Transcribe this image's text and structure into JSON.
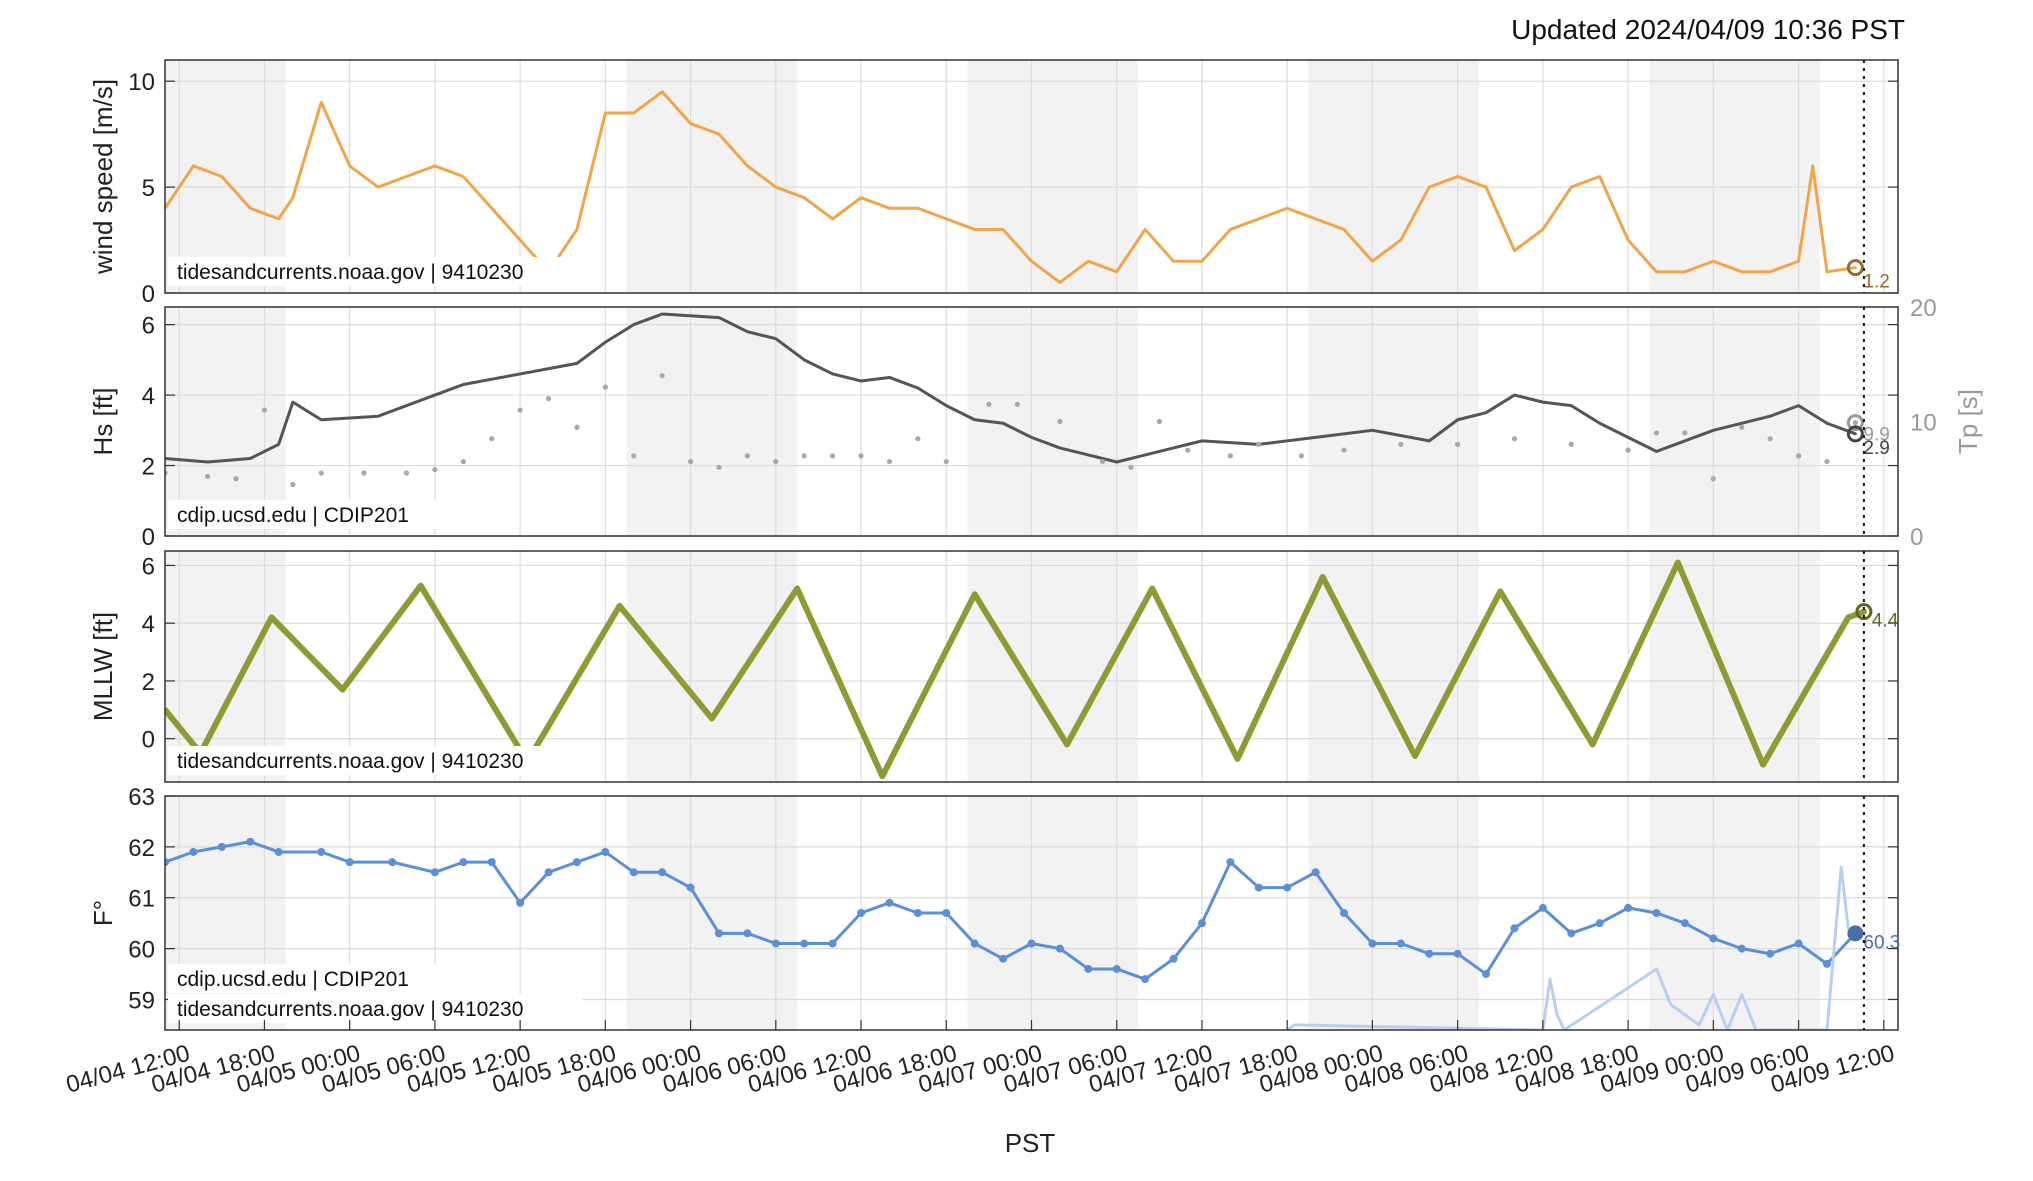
{
  "header": {
    "updated": "Updated 2024/04/09 10:36 PST"
  },
  "xaxis": {
    "label": "PST",
    "range": [
      "2024-04-04T11:00",
      "2024-04-09T13:00"
    ],
    "ticks": [
      "04/04 12:00",
      "04/04 18:00",
      "04/05 00:00",
      "04/05 06:00",
      "04/05 12:00",
      "04/05 18:00",
      "04/06 00:00",
      "04/06 06:00",
      "04/06 12:00",
      "04/06 18:00",
      "04/07 00:00",
      "04/07 06:00",
      "04/07 12:00",
      "04/07 18:00",
      "04/08 00:00",
      "04/08 06:00",
      "04/08 12:00",
      "04/08 18:00",
      "04/09 00:00",
      "04/09 06:00",
      "04/09 12:00"
    ],
    "now_marker": "2024-04-09T10:36",
    "night_shading": [
      [
        "04/04 11:00",
        "04/04 19:30"
      ],
      [
        "04/05 19:30",
        "04/06 07:30"
      ],
      [
        "04/06 19:30",
        "04/07 07:30"
      ],
      [
        "04/07 19:30",
        "04/08 07:30"
      ],
      [
        "04/08 19:30",
        "04/09 07:30"
      ]
    ]
  },
  "chart_data": [
    {
      "type": "line",
      "panel": "wind",
      "ylabel": "wind speed [m/s]",
      "ylim": [
        0,
        11
      ],
      "yticks": [
        0,
        5,
        10
      ],
      "source": "tidesandcurrents.noaa.gov | 9410230",
      "color": "#f0a54a",
      "last_value_label": "1.2",
      "series": [
        {
          "x": [
            "04/04 11:00",
            "04/04 13:00",
            "04/04 15:00",
            "04/04 17:00",
            "04/04 19:00",
            "04/04 20:00",
            "04/04 22:00",
            "04/05 00:00",
            "04/05 02:00",
            "04/05 04:00",
            "04/05 06:00",
            "04/05 08:00",
            "04/05 10:00",
            "04/05 12:00",
            "04/05 14:00",
            "04/05 16:00",
            "04/05 18:00",
            "04/05 20:00",
            "04/05 22:00",
            "04/06 00:00",
            "04/06 02:00",
            "04/06 04:00",
            "04/06 06:00",
            "04/06 08:00",
            "04/06 10:00",
            "04/06 12:00",
            "04/06 14:00",
            "04/06 16:00",
            "04/06 18:00",
            "04/06 20:00",
            "04/06 22:00",
            "04/07 00:00",
            "04/07 02:00",
            "04/07 04:00",
            "04/07 06:00",
            "04/07 08:00",
            "04/07 10:00",
            "04/07 12:00",
            "04/07 14:00",
            "04/07 16:00",
            "04/07 18:00",
            "04/07 20:00",
            "04/07 22:00",
            "04/08 00:00",
            "04/08 02:00",
            "04/08 04:00",
            "04/08 06:00",
            "04/08 08:00",
            "04/08 10:00",
            "04/08 12:00",
            "04/08 14:00",
            "04/08 16:00",
            "04/08 18:00",
            "04/08 20:00",
            "04/08 22:00",
            "04/09 00:00",
            "04/09 02:00",
            "04/09 04:00",
            "04/09 06:00",
            "04/09 07:00",
            "04/09 08:00",
            "04/09 10:00"
          ],
          "y": [
            4.0,
            6.0,
            5.5,
            4.0,
            3.5,
            4.5,
            9.0,
            6.0,
            5.0,
            5.5,
            6.0,
            5.5,
            4.0,
            2.5,
            1.0,
            3.0,
            8.5,
            8.5,
            9.5,
            8.0,
            7.5,
            6.0,
            5.0,
            4.5,
            3.5,
            4.5,
            4.0,
            4.0,
            3.5,
            3.0,
            3.0,
            1.5,
            0.5,
            1.5,
            1.0,
            3.0,
            1.5,
            1.5,
            3.0,
            3.5,
            4.0,
            3.5,
            3.0,
            1.5,
            2.5,
            5.0,
            5.5,
            5.0,
            2.0,
            3.0,
            5.0,
            5.5,
            2.5,
            1.0,
            1.0,
            1.5,
            1.0,
            1.0,
            1.5,
            6.0,
            1.0,
            1.2
          ]
        }
      ]
    },
    {
      "type": "line",
      "panel": "waves",
      "ylabel": "Hs [ft]",
      "y2label": "Tp [s]",
      "ylim": [
        0,
        6.5
      ],
      "y2lim": [
        0,
        20
      ],
      "yticks": [
        0,
        2,
        4,
        6
      ],
      "y2ticks": [
        0,
        10,
        20
      ],
      "source": "cdip.ucsd.edu | CDIP201",
      "last_value_labels": [
        "9.9",
        "2.9"
      ],
      "series": [
        {
          "name": "Hs",
          "color": "#555555",
          "x": [
            "04/04 11:00",
            "04/04 14:00",
            "04/04 17:00",
            "04/04 19:00",
            "04/04 20:00",
            "04/04 22:00",
            "04/05 02:00",
            "04/05 06:00",
            "04/05 08:00",
            "04/05 12:00",
            "04/05 16:00",
            "04/05 18:00",
            "04/05 20:00",
            "04/05 22:00",
            "04/06 02:00",
            "04/06 04:00",
            "04/06 06:00",
            "04/06 08:00",
            "04/06 10:00",
            "04/06 12:00",
            "04/06 14:00",
            "04/06 16:00",
            "04/06 18:00",
            "04/06 20:00",
            "04/06 22:00",
            "04/07 00:00",
            "04/07 02:00",
            "04/07 04:00",
            "04/07 06:00",
            "04/07 08:00",
            "04/07 10:00",
            "04/07 12:00",
            "04/07 16:00",
            "04/07 20:00",
            "04/08 00:00",
            "04/08 04:00",
            "04/08 06:00",
            "04/08 08:00",
            "04/08 10:00",
            "04/08 12:00",
            "04/08 14:00",
            "04/08 16:00",
            "04/08 18:00",
            "04/08 20:00",
            "04/09 00:00",
            "04/09 04:00",
            "04/09 06:00",
            "04/09 08:00",
            "04/09 10:00"
          ],
          "y": [
            2.2,
            2.1,
            2.2,
            2.6,
            3.8,
            3.3,
            3.4,
            4.0,
            4.3,
            4.6,
            4.9,
            5.5,
            6.0,
            6.3,
            6.2,
            5.8,
            5.6,
            5.0,
            4.6,
            4.4,
            4.5,
            4.2,
            3.7,
            3.3,
            3.2,
            2.8,
            2.5,
            2.3,
            2.1,
            2.3,
            2.5,
            2.7,
            2.6,
            2.8,
            3.0,
            2.7,
            3.3,
            3.5,
            4.0,
            3.8,
            3.7,
            3.2,
            2.8,
            2.4,
            3.0,
            3.4,
            3.7,
            3.2,
            2.9
          ]
        },
        {
          "name": "Tp",
          "color": "#a8a8a8",
          "axis": "right",
          "points": true,
          "x": [
            "04/04 11:00",
            "04/04 14:00",
            "04/04 16:00",
            "04/04 18:00",
            "04/04 20:00",
            "04/04 22:00",
            "04/05 01:00",
            "04/05 04:00",
            "04/05 06:00",
            "04/05 08:00",
            "04/05 10:00",
            "04/05 12:00",
            "04/05 14:00",
            "04/05 16:00",
            "04/05 18:00",
            "04/05 20:00",
            "04/05 22:00",
            "04/06 00:00",
            "04/06 02:00",
            "04/06 04:00",
            "04/06 06:00",
            "04/06 08:00",
            "04/06 10:00",
            "04/06 12:00",
            "04/06 14:00",
            "04/06 16:00",
            "04/06 18:00",
            "04/06 21:00",
            "04/06 23:00",
            "04/07 02:00",
            "04/07 05:00",
            "04/07 07:00",
            "04/07 09:00",
            "04/07 11:00",
            "04/07 14:00",
            "04/07 16:00",
            "04/07 19:00",
            "04/07 22:00",
            "04/08 02:00",
            "04/08 06:00",
            "04/08 10:00",
            "04/08 14:00",
            "04/08 18:00",
            "04/08 20:00",
            "04/08 22:00",
            "04/09 00:00",
            "04/09 02:00",
            "04/09 04:00",
            "04/09 06:00",
            "04/09 08:00",
            "04/09 10:00"
          ],
          "y": [
            5.5,
            5.2,
            5.0,
            11.0,
            4.5,
            5.5,
            5.5,
            5.5,
            5.8,
            6.5,
            8.5,
            11.0,
            12.0,
            9.5,
            13.0,
            7.0,
            14.0,
            6.5,
            6.0,
            7.0,
            6.5,
            7.0,
            7.0,
            7.0,
            6.5,
            8.5,
            6.5,
            11.5,
            11.5,
            10.0,
            6.5,
            6.0,
            10.0,
            7.5,
            7.0,
            8.0,
            7.0,
            7.5,
            8.0,
            8.0,
            8.5,
            8.0,
            7.5,
            9.0,
            9.0,
            5.0,
            9.5,
            8.5,
            7.0,
            6.5,
            9.9
          ]
        }
      ]
    },
    {
      "type": "line",
      "panel": "tide",
      "ylabel": "MLLW [ft]",
      "ylim": [
        -1.5,
        6.5
      ],
      "yticks": [
        0,
        2,
        4,
        6
      ],
      "source": "tidesandcurrents.noaa.gov | 9410230",
      "color": "#8f9a33",
      "last_value_label": "4.4",
      "series": [
        {
          "x": [
            "04/04 11:00",
            "04/04 13:30",
            "04/04 18:30",
            "04/04 23:30",
            "04/05 05:00",
            "04/05 12:30",
            "04/05 19:00",
            "04/06 01:30",
            "04/06 07:30",
            "04/06 13:30",
            "04/06 20:00",
            "04/07 02:30",
            "04/07 08:30",
            "04/07 14:30",
            "04/07 20:30",
            "04/08 03:00",
            "04/08 09:00",
            "04/08 15:30",
            "04/08 21:30",
            "04/09 03:30",
            "04/09 09:30",
            "04/09 10:36"
          ],
          "y": [
            1.0,
            -0.5,
            4.2,
            1.7,
            5.3,
            -0.8,
            4.6,
            0.7,
            5.2,
            -1.3,
            5.0,
            -0.2,
            5.2,
            -0.7,
            5.6,
            -0.6,
            5.1,
            -0.2,
            6.1,
            -0.9,
            4.2,
            4.4
          ]
        }
      ]
    },
    {
      "type": "line",
      "panel": "water-temperature",
      "ylabel": "F°",
      "ylim": [
        58.4,
        63
      ],
      "yticks": [
        59,
        60,
        61,
        62,
        63
      ],
      "sources": [
        "cdip.ucsd.edu | CDIP201",
        "tidesandcurrents.noaa.gov | 9410230"
      ],
      "last_value_label": "60.3",
      "series": [
        {
          "name": "cdip.ucsd.edu | CDIP201",
          "color": "#5b8fd6",
          "points": true,
          "x": [
            "04/04 11:00",
            "04/04 13:00",
            "04/04 15:00",
            "04/04 17:00",
            "04/04 19:00",
            "04/04 22:00",
            "04/05 00:00",
            "04/05 03:00",
            "04/05 06:00",
            "04/05 08:00",
            "04/05 10:00",
            "04/05 12:00",
            "04/05 14:00",
            "04/05 16:00",
            "04/05 18:00",
            "04/05 20:00",
            "04/05 22:00",
            "04/06 00:00",
            "04/06 02:00",
            "04/06 04:00",
            "04/06 06:00",
            "04/06 08:00",
            "04/06 10:00",
            "04/06 12:00",
            "04/06 14:00",
            "04/06 16:00",
            "04/06 18:00",
            "04/06 20:00",
            "04/06 22:00",
            "04/07 00:00",
            "04/07 02:00",
            "04/07 04:00",
            "04/07 06:00",
            "04/07 08:00",
            "04/07 10:00",
            "04/07 12:00",
            "04/07 14:00",
            "04/07 16:00",
            "04/07 18:00",
            "04/07 20:00",
            "04/07 22:00",
            "04/08 00:00",
            "04/08 02:00",
            "04/08 04:00",
            "04/08 06:00",
            "04/08 08:00",
            "04/08 10:00",
            "04/08 12:00",
            "04/08 14:00",
            "04/08 16:00",
            "04/08 18:00",
            "04/08 20:00",
            "04/08 22:00",
            "04/09 00:00",
            "04/09 02:00",
            "04/09 04:00",
            "04/09 06:00",
            "04/09 08:00",
            "04/09 10:00"
          ],
          "y": [
            61.7,
            61.9,
            62.0,
            62.1,
            61.9,
            61.9,
            61.7,
            61.7,
            61.5,
            61.7,
            61.7,
            60.9,
            61.5,
            61.7,
            61.9,
            61.5,
            61.5,
            61.2,
            60.3,
            60.3,
            60.1,
            60.1,
            60.1,
            60.7,
            60.9,
            60.7,
            60.7,
            60.1,
            59.8,
            60.1,
            60.0,
            59.6,
            59.6,
            59.4,
            59.8,
            60.5,
            61.7,
            61.2,
            61.2,
            61.5,
            60.7,
            60.1,
            60.1,
            59.9,
            59.9,
            59.5,
            60.4,
            60.8,
            60.3,
            60.5,
            60.8,
            60.7,
            60.5,
            60.2,
            60.0,
            59.9,
            60.1,
            59.7,
            60.3
          ]
        },
        {
          "name": "tidesandcurrents.noaa.gov | 9410230",
          "color": "#b7d0ef",
          "x": [
            "04/07 18:00",
            "04/07 18:30",
            "04/08 12:00",
            "04/08 12:30",
            "04/08 13:00",
            "04/08 13:30",
            "04/08 20:00",
            "04/08 21:00",
            "04/08 23:00",
            "04/09 00:00",
            "04/09 01:00",
            "04/09 02:00",
            "04/09 03:00",
            "04/09 04:00",
            "04/09 06:00",
            "04/09 08:00",
            "04/09 09:00",
            "04/09 09:30"
          ],
          "y": [
            58.4,
            58.5,
            58.4,
            59.4,
            58.7,
            58.4,
            59.6,
            58.9,
            58.5,
            59.1,
            58.4,
            59.1,
            58.4,
            58.4,
            58.4,
            58.4,
            61.6,
            60.4
          ]
        }
      ]
    }
  ]
}
